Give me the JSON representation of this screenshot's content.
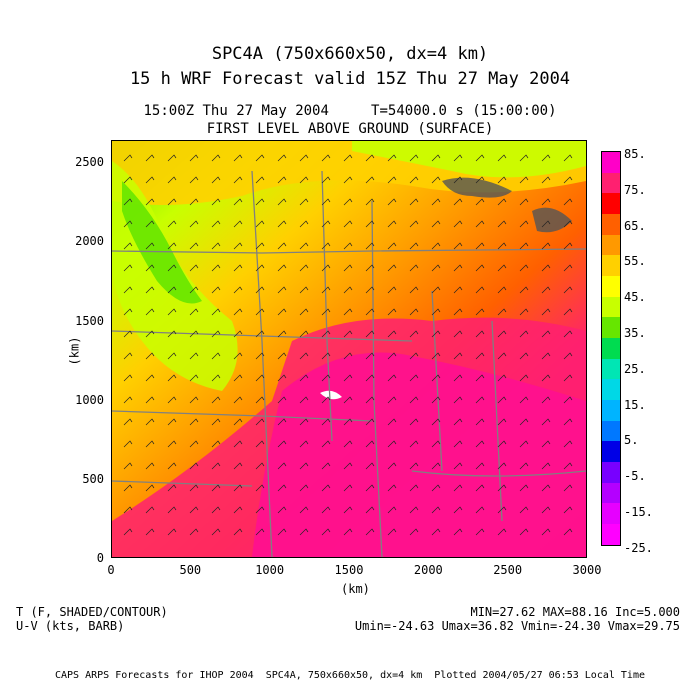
{
  "titles": {
    "line1": "SPC4A (750x660x50, dx=4 km)",
    "line2": "15 h WRF Forecast valid 15Z Thu 27 May 2004",
    "time_line": "15:00Z Thu 27 May 2004     T=54000.0 s (15:00:00)",
    "level_line": "FIRST LEVEL ABOVE GROUND (SURFACE)"
  },
  "axes": {
    "y_label": "(km)",
    "x_label": "(km)",
    "y_ticks": [
      "2500",
      "2000",
      "1500",
      "1000",
      "500",
      "0"
    ],
    "x_ticks": [
      "0",
      "500",
      "1000",
      "1500",
      "2000",
      "2500",
      "3000"
    ]
  },
  "colorbar": {
    "labels": [
      "85.",
      "75.",
      "65.",
      "55.",
      "45.",
      "35.",
      "25.",
      "15.",
      "5.",
      "-5.",
      "-15.",
      "-25."
    ],
    "colors": [
      "#ff00c8",
      "#ff2070",
      "#ff0000",
      "#ff6000",
      "#ff9900",
      "#ffd000",
      "#ffff00",
      "#c8ff00",
      "#66e600",
      "#00dc50",
      "#00e6b4",
      "#00d8e6",
      "#00b4ff",
      "#0078ff",
      "#0000e6",
      "#7800ff",
      "#b400ff",
      "#e600ff",
      "#ff00ff"
    ]
  },
  "info": {
    "field1": "T (F, SHADED/CONTOUR)",
    "field2": "U-V (kts, BARB)",
    "stats1": "MIN=27.62 MAX=88.16 Inc=5.000",
    "stats2": "Umin=-24.63 Umax=36.82 Vmin=-24.30 Vmax=29.75"
  },
  "footer": "CAPS ARPS Forecasts for IHOP 2004  SPC4A, 750x660x50, dx=4 km  Plotted 2004/05/27 06:53 Local Time",
  "chart_data": {
    "type": "heatmap",
    "variable": "T",
    "units": "F",
    "min": 27.62,
    "max": 88.16,
    "contour_interval": 5.0,
    "colorbar_range": [
      -25,
      85
    ],
    "x_range_km": [
      0,
      3000
    ],
    "y_range_km": [
      0,
      2640
    ],
    "wind": {
      "umin": -24.63,
      "umax": 36.82,
      "vmin": -24.3,
      "vmax": 29.75
    }
  }
}
